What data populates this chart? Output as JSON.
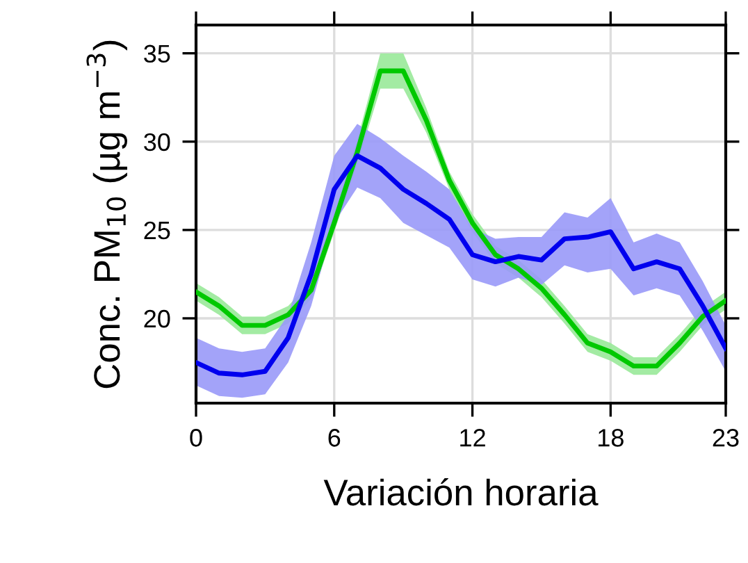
{
  "chart_data": {
    "type": "line",
    "xlabel": "Variación horaria",
    "ylabel": "Conc. PM$_{10}$ (µg m$^{−3}$)",
    "x": [
      0,
      1,
      2,
      3,
      4,
      5,
      6,
      7,
      8,
      9,
      10,
      11,
      12,
      13,
      14,
      15,
      16,
      17,
      18,
      19,
      20,
      21,
      22,
      23
    ],
    "series": [
      {
        "color": "#00c800",
        "values": [
          21.5,
          20.7,
          19.6,
          19.6,
          20.2,
          21.6,
          25.4,
          29.4,
          34.0,
          34.0,
          31.2,
          27.8,
          25.4,
          23.6,
          22.8,
          21.7,
          20.2,
          18.6,
          18.1,
          17.3,
          17.3,
          18.6,
          20.1,
          21.0
        ],
        "lower": [
          21.0,
          20.2,
          19.1,
          19.1,
          19.7,
          21.1,
          24.9,
          28.7,
          33.0,
          33.0,
          30.5,
          27.3,
          24.9,
          23.1,
          22.3,
          21.2,
          19.7,
          18.1,
          17.6,
          16.8,
          16.8,
          18.1,
          19.6,
          20.5
        ],
        "upper": [
          22.0,
          21.2,
          20.1,
          20.1,
          20.7,
          22.1,
          25.9,
          30.1,
          35.0,
          35.0,
          31.9,
          28.3,
          25.9,
          24.1,
          23.3,
          22.2,
          20.7,
          19.1,
          18.6,
          17.8,
          17.8,
          19.1,
          20.6,
          21.5
        ]
      },
      {
        "color": "#0000ee",
        "values": [
          17.5,
          16.9,
          16.8,
          17.0,
          18.9,
          22.5,
          27.3,
          29.2,
          28.5,
          27.3,
          26.5,
          25.6,
          23.6,
          23.2,
          23.5,
          23.3,
          24.5,
          24.6,
          24.9,
          22.8,
          23.2,
          22.8,
          20.7,
          18.3
        ],
        "lower": [
          16.2,
          15.6,
          15.5,
          15.7,
          17.5,
          20.7,
          25.4,
          27.4,
          26.8,
          25.4,
          24.7,
          24.0,
          22.2,
          21.8,
          22.3,
          21.9,
          23.0,
          22.6,
          22.8,
          21.3,
          21.7,
          21.3,
          19.3,
          17.0
        ],
        "upper": [
          18.9,
          18.3,
          18.1,
          18.3,
          20.2,
          24.3,
          29.2,
          31.0,
          30.2,
          29.2,
          28.3,
          27.3,
          25.1,
          24.5,
          24.6,
          24.6,
          26.0,
          25.7,
          26.8,
          24.3,
          24.8,
          24.3,
          22.1,
          19.6
        ]
      }
    ],
    "xlim": [
      0,
      23
    ],
    "ylim": [
      15.2,
      36.6
    ],
    "xticks": [
      0,
      6,
      12,
      18,
      23
    ],
    "yticks": [
      20,
      25,
      30,
      35
    ],
    "grid": true,
    "marker": "none",
    "line_style": "solid"
  }
}
